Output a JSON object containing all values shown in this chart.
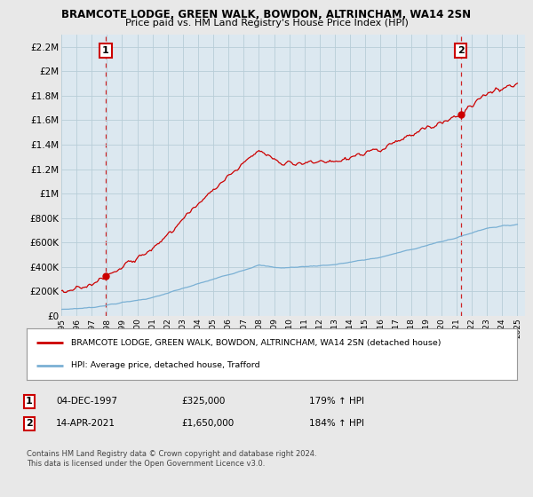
{
  "title1": "BRAMCOTE LODGE, GREEN WALK, BOWDON, ALTRINCHAM, WA14 2SN",
  "title2": "Price paid vs. HM Land Registry's House Price Index (HPI)",
  "sale1_date": "04-DEC-1997",
  "sale1_price": 325000,
  "sale1_price_str": "£325,000",
  "sale1_hpi": "179% ↑ HPI",
  "sale2_date": "14-APR-2021",
  "sale2_price": 1650000,
  "sale2_price_str": "£1,650,000",
  "sale2_hpi": "184% ↑ HPI",
  "legend1": "BRAMCOTE LODGE, GREEN WALK, BOWDON, ALTRINCHAM, WA14 2SN (detached house)",
  "legend2": "HPI: Average price, detached house, Trafford",
  "footnote1": "Contains HM Land Registry data © Crown copyright and database right 2024.",
  "footnote2": "This data is licensed under the Open Government Licence v3.0.",
  "ylim": [
    0,
    2300000
  ],
  "yticks": [
    0,
    200000,
    400000,
    600000,
    800000,
    1000000,
    1200000,
    1400000,
    1600000,
    1800000,
    2000000,
    2200000
  ],
  "ytick_labels": [
    "£0",
    "£200K",
    "£400K",
    "£600K",
    "£800K",
    "£1M",
    "£1.2M",
    "£1.4M",
    "£1.6M",
    "£1.8M",
    "£2M",
    "£2.2M"
  ],
  "sale1_x": 1997.92,
  "sale2_x": 2021.28,
  "background_color": "#e8e8e8",
  "plot_bg": "#dce8f0",
  "red_color": "#cc0000",
  "blue_color": "#7ab0d4",
  "grid_color": "#b8cdd8"
}
